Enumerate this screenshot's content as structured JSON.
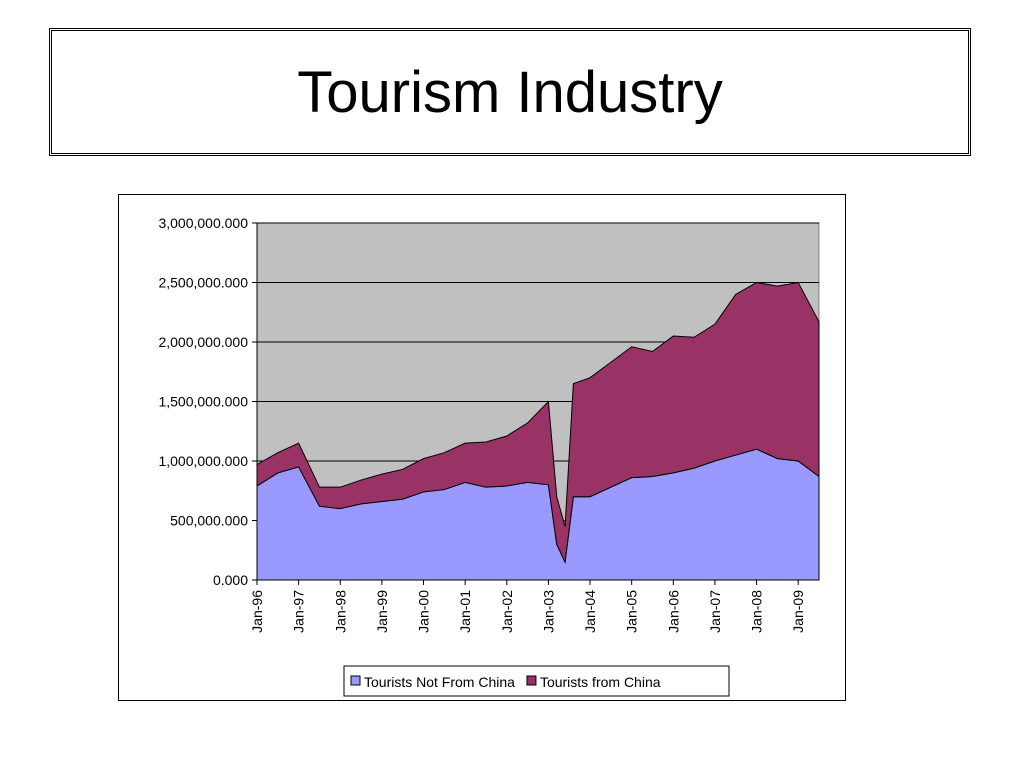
{
  "page": {
    "title": "Tourism Industry"
  },
  "chart_data": {
    "type": "area",
    "stacked": true,
    "x_tick_labels": [
      "Jan-96",
      "Jan-97",
      "Jan-98",
      "Jan-99",
      "Jan-00",
      "Jan-01",
      "Jan-02",
      "Jan-03",
      "Jan-04",
      "Jan-05",
      "Jan-06",
      "Jan-07",
      "Jan-08",
      "Jan-09"
    ],
    "y_tick_labels": [
      "0.000",
      "500,000.000",
      "1,000,000.000",
      "1,500,000.000",
      "2,000,000.000",
      "2,500,000.000",
      "3,000,000.000"
    ],
    "ylim": [
      0,
      3000000000
    ],
    "grid": true,
    "legend_position": "bottom",
    "colors": {
      "plot_bg": "#c0c0c0",
      "base": "#9999ff",
      "top": "#993366"
    },
    "x": [
      1996.0,
      1996.5,
      1997.0,
      1997.5,
      1998.0,
      1998.5,
      1999.0,
      1999.5,
      2000.0,
      2000.5,
      2001.0,
      2001.5,
      2002.0,
      2002.5,
      2003.0,
      2003.2,
      2003.4,
      2003.6,
      2004.0,
      2004.5,
      2005.0,
      2005.5,
      2006.0,
      2006.5,
      2007.0,
      2007.5,
      2008.0,
      2008.5,
      2009.0,
      2009.5
    ],
    "series": [
      {
        "name": "Tourists Not From China",
        "values": [
          790000000,
          900000000,
          950000000,
          620000000,
          600000000,
          640000000,
          660000000,
          680000000,
          740000000,
          760000000,
          820000000,
          780000000,
          790000000,
          820000000,
          800000000,
          300000000,
          150000000,
          700000000,
          700000000,
          780000000,
          860000000,
          870000000,
          900000000,
          940000000,
          1000000000,
          1050000000,
          1100000000,
          1020000000,
          1000000000,
          870000000
        ]
      },
      {
        "name": "Tourists from China",
        "values": [
          180000000,
          170000000,
          200000000,
          160000000,
          180000000,
          200000000,
          230000000,
          250000000,
          280000000,
          310000000,
          330000000,
          380000000,
          420000000,
          500000000,
          700000000,
          400000000,
          300000000,
          950000000,
          1000000000,
          1050000000,
          1100000000,
          1050000000,
          1150000000,
          1100000000,
          1150000000,
          1350000000,
          1400000000,
          1450000000,
          1500000000,
          1300000000
        ]
      }
    ]
  }
}
